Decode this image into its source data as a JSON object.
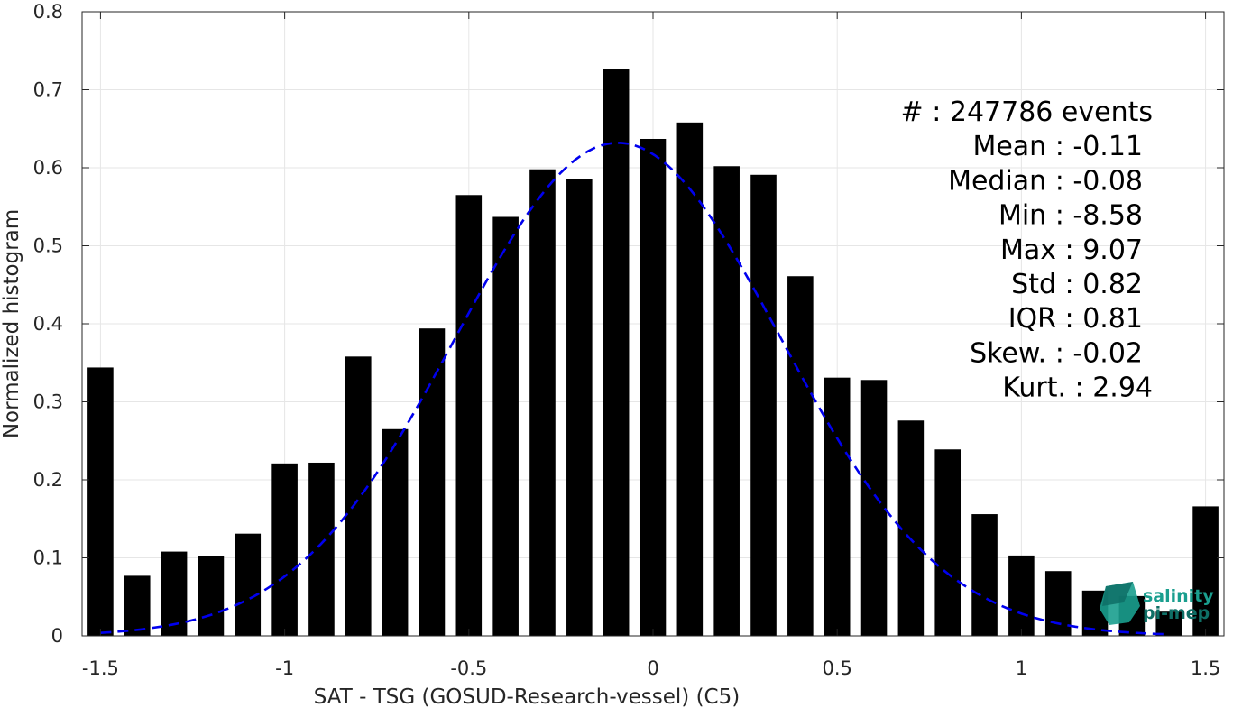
{
  "chart_data": {
    "type": "bar",
    "xlabel": "SAT - TSG (GOSUD-Research-vessel) (C5)",
    "ylabel": "Normalized histogram",
    "xlim": [
      -1.55,
      1.55
    ],
    "ylim": [
      0,
      0.8
    ],
    "xticks": [
      -1.5,
      -1,
      -0.5,
      0,
      0.5,
      1,
      1.5
    ],
    "xtick_labels": [
      "-1.5",
      "-1",
      "-0.5",
      "0",
      "0.5",
      "1",
      "1.5"
    ],
    "yticks": [
      0,
      0.1,
      0.2,
      0.3,
      0.4,
      0.5,
      0.6,
      0.7,
      0.8
    ],
    "ytick_labels": [
      "0",
      "0.1",
      "0.2",
      "0.3",
      "0.4",
      "0.5",
      "0.6",
      "0.7",
      "0.8"
    ],
    "grid": true,
    "bar_color": "#000000",
    "bars": [
      {
        "x": -1.5,
        "y": 0.344
      },
      {
        "x": -1.4,
        "y": 0.077
      },
      {
        "x": -1.3,
        "y": 0.108
      },
      {
        "x": -1.2,
        "y": 0.102
      },
      {
        "x": -1.1,
        "y": 0.131
      },
      {
        "x": -1.0,
        "y": 0.221
      },
      {
        "x": -0.9,
        "y": 0.222
      },
      {
        "x": -0.8,
        "y": 0.358
      },
      {
        "x": -0.7,
        "y": 0.265
      },
      {
        "x": -0.6,
        "y": 0.394
      },
      {
        "x": -0.5,
        "y": 0.565
      },
      {
        "x": -0.4,
        "y": 0.537
      },
      {
        "x": -0.3,
        "y": 0.598
      },
      {
        "x": -0.2,
        "y": 0.585
      },
      {
        "x": -0.1,
        "y": 0.726
      },
      {
        "x": 0.0,
        "y": 0.637
      },
      {
        "x": 0.1,
        "y": 0.658
      },
      {
        "x": 0.2,
        "y": 0.602
      },
      {
        "x": 0.3,
        "y": 0.591
      },
      {
        "x": 0.4,
        "y": 0.461
      },
      {
        "x": 0.5,
        "y": 0.331
      },
      {
        "x": 0.6,
        "y": 0.328
      },
      {
        "x": 0.7,
        "y": 0.276
      },
      {
        "x": 0.8,
        "y": 0.239
      },
      {
        "x": 0.9,
        "y": 0.156
      },
      {
        "x": 1.0,
        "y": 0.103
      },
      {
        "x": 1.1,
        "y": 0.083
      },
      {
        "x": 1.2,
        "y": 0.058
      },
      {
        "x": 1.3,
        "y": 0.051
      },
      {
        "x": 1.4,
        "y": 0.031
      },
      {
        "x": 1.5,
        "y": 0.166
      }
    ],
    "fit_curve": {
      "type": "gaussian",
      "style": "dashed",
      "color": "#0000ee",
      "mean": -0.095,
      "sigma": 0.44,
      "peak": 0.632,
      "x_range": [
        -1.5,
        1.4
      ]
    },
    "stats": [
      {
        "label": "#  : 247786 events"
      },
      {
        "label": "Mean : -0.11"
      },
      {
        "label": "Median : -0.08"
      },
      {
        "label": "Min : -8.58"
      },
      {
        "label": "Max : 9.07"
      },
      {
        "label": "Std : 0.82"
      },
      {
        "label": "IQR : 0.81"
      },
      {
        "label": "Skew. : -0.02"
      },
      {
        "label": "Kurt. : 2.94"
      }
    ]
  },
  "logo": {
    "line1": "salinity",
    "line2": "pi-mep",
    "color_primary": "#1a9e8e",
    "color_secondary": "#0e6f66"
  }
}
